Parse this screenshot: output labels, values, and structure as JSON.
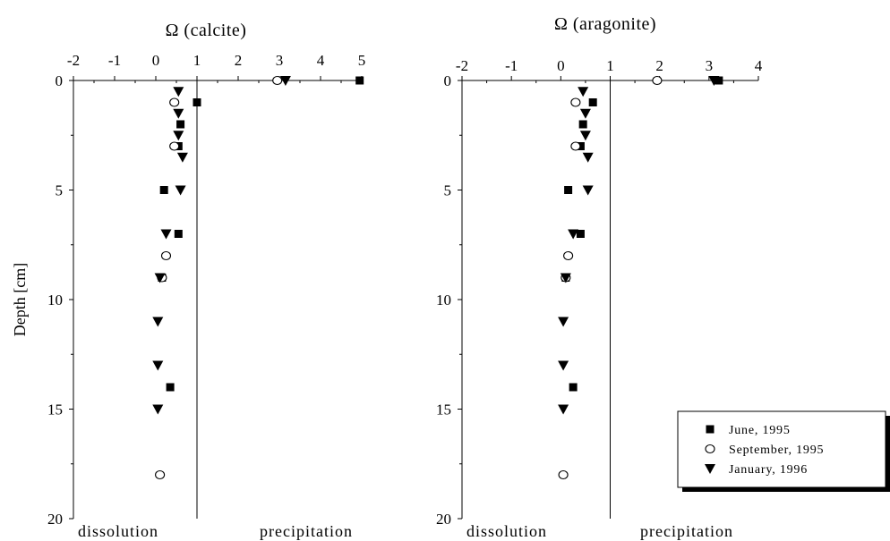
{
  "chart_data": [
    {
      "type": "scatter",
      "xlabel": "Ω (calcite)",
      "ylabel": "Depth [cm]",
      "xlim": [
        -2,
        5
      ],
      "ylim": [
        20,
        0
      ],
      "x_ticks": [
        -2,
        -1,
        0,
        1,
        2,
        3,
        4,
        5
      ],
      "y_ticks": [
        0,
        5,
        10,
        15,
        20
      ],
      "reference_line_x": 1,
      "bottom_left_label": "dissolution",
      "bottom_right_label": "precipitation",
      "series": [
        {
          "name": "June, 1995",
          "marker": "square",
          "x": [
            4.95,
            1.0,
            0.6,
            0.55,
            0.2,
            0.55,
            0.15,
            0.35
          ],
          "y": [
            0,
            1,
            2,
            3,
            5,
            7,
            9,
            14
          ]
        },
        {
          "name": "September, 1995",
          "marker": "circle",
          "x": [
            2.95,
            0.45,
            0.45,
            0.25,
            0.15,
            0.1
          ],
          "y": [
            0,
            1,
            3,
            8,
            9,
            18
          ]
        },
        {
          "name": "January, 1996",
          "marker": "triangle-down",
          "x": [
            3.15,
            0.55,
            0.55,
            0.55,
            0.65,
            0.6,
            0.25,
            0.1,
            0.05,
            0.05,
            0.05
          ],
          "y": [
            0,
            0.5,
            1.5,
            2.5,
            3.5,
            5,
            7,
            9,
            11,
            13,
            15
          ]
        }
      ]
    },
    {
      "type": "scatter",
      "xlabel": "Ω (aragonite)",
      "ylabel": "",
      "xlim": [
        -2,
        4
      ],
      "ylim": [
        20,
        0
      ],
      "x_ticks": [
        -2,
        -1,
        0,
        1,
        2,
        3,
        4
      ],
      "y_ticks": [
        0,
        5,
        10,
        15,
        20
      ],
      "reference_line_x": 1,
      "bottom_left_label": "dissolution",
      "bottom_right_label": "precipitation",
      "series": [
        {
          "name": "June, 1995",
          "marker": "square",
          "x": [
            3.2,
            0.65,
            0.45,
            0.4,
            0.15,
            0.4,
            0.1,
            0.25
          ],
          "y": [
            0,
            1,
            2,
            3,
            5,
            7,
            9,
            14
          ]
        },
        {
          "name": "September, 1995",
          "marker": "circle",
          "x": [
            1.95,
            0.3,
            0.3,
            0.15,
            0.1,
            0.05
          ],
          "y": [
            0,
            1,
            3,
            8,
            9,
            18
          ]
        },
        {
          "name": "January, 1996",
          "marker": "triangle-down",
          "x": [
            3.1,
            0.45,
            0.5,
            0.5,
            0.55,
            0.55,
            0.25,
            0.1,
            0.05,
            0.05,
            0.05
          ],
          "y": [
            0,
            0.5,
            1.5,
            2.5,
            3.5,
            5,
            7,
            9,
            11,
            13,
            15
          ]
        }
      ]
    }
  ],
  "legend": {
    "placement": "bottom-right",
    "entries": [
      {
        "label": "June, 1995",
        "marker": "square"
      },
      {
        "label": "September, 1995",
        "marker": "circle"
      },
      {
        "label": "January, 1996",
        "marker": "triangle-down"
      }
    ]
  }
}
